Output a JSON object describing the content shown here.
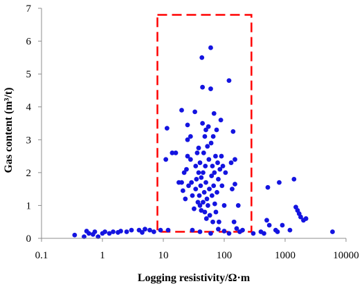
{
  "chart_data": {
    "type": "scatter",
    "title": "",
    "xlabel": "Logging resistivity/Ω·m",
    "ylabel": "Gas content (m³/t)",
    "x_scale": "log",
    "xlim": [
      0.1,
      10000
    ],
    "ylim": [
      0,
      7
    ],
    "x_ticks": [
      0.1,
      1,
      10,
      100,
      1000,
      10000
    ],
    "x_tick_labels": [
      "0.1",
      "1",
      "10",
      "100",
      "1000",
      "10000"
    ],
    "y_ticks": [
      0,
      1,
      2,
      3,
      4,
      5,
      6,
      7
    ],
    "y_tick_labels": [
      "0",
      "1",
      "2",
      "3",
      "4",
      "5",
      "6",
      "7"
    ],
    "grid": false,
    "legend": "none",
    "colors": {
      "points": "#1414e0",
      "highlight": "#ff0000",
      "axis": "#8c8c8c"
    },
    "highlight_box": {
      "x_range": [
        8,
        280
      ],
      "y_range": [
        0.2,
        6.8
      ],
      "style": "dashed"
    },
    "series": [
      {
        "points": [
          [
            0.35,
            0.1
          ],
          [
            0.5,
            0.05
          ],
          [
            0.55,
            0.22
          ],
          [
            0.6,
            0.15
          ],
          [
            0.7,
            0.12
          ],
          [
            0.75,
            0.2
          ],
          [
            0.85,
            0.05
          ],
          [
            1.0,
            0.15
          ],
          [
            1.1,
            0.2
          ],
          [
            1.3,
            0.15
          ],
          [
            1.5,
            0.2
          ],
          [
            1.8,
            0.18
          ],
          [
            2.0,
            0.22
          ],
          [
            2.5,
            0.2
          ],
          [
            3.0,
            0.25
          ],
          [
            4.0,
            0.25
          ],
          [
            4.5,
            0.18
          ],
          [
            5.0,
            0.28
          ],
          [
            6.0,
            0.25
          ],
          [
            7.0,
            0.2
          ],
          [
            9.0,
            0.25
          ],
          [
            12.0,
            0.25
          ],
          [
            11.0,
            2.4
          ],
          [
            11.5,
            3.35
          ],
          [
            14.0,
            2.6
          ],
          [
            16.0,
            2.6
          ],
          [
            18.0,
            1.7
          ],
          [
            20.0,
            3.9
          ],
          [
            20.0,
            1.7
          ],
          [
            21.0,
            1.45
          ],
          [
            22.0,
            2.0
          ],
          [
            23.0,
            1.2
          ],
          [
            24.0,
            2.1
          ],
          [
            25.0,
            3.0
          ],
          [
            25.0,
            3.45
          ],
          [
            25.0,
            2.5
          ],
          [
            26.0,
            1.6
          ],
          [
            28.0,
            3.1
          ],
          [
            28.0,
            2.4
          ],
          [
            29.0,
            1.7
          ],
          [
            30.0,
            1.3
          ],
          [
            32.0,
            0.9
          ],
          [
            33.0,
            3.85
          ],
          [
            34.0,
            2.2
          ],
          [
            34.0,
            1.5
          ],
          [
            35.0,
            1.8
          ],
          [
            36.0,
            2.6
          ],
          [
            37.0,
            1.1
          ],
          [
            38.0,
            2.0
          ],
          [
            38.0,
            2.75
          ],
          [
            39.0,
            1.3
          ],
          [
            40.0,
            1.0
          ],
          [
            40.0,
            2.3
          ],
          [
            41.0,
            1.6
          ],
          [
            42.0,
            0.85
          ],
          [
            42.0,
            1.85
          ],
          [
            43.0,
            5.5
          ],
          [
            44.0,
            4.6
          ],
          [
            44.0,
            3.5
          ],
          [
            45.0,
            2.0
          ],
          [
            45.0,
            1.1
          ],
          [
            46.0,
            2.6
          ],
          [
            47.0,
            1.4
          ],
          [
            48.0,
            0.8
          ],
          [
            48.0,
            3.1
          ],
          [
            49.0,
            2.2
          ],
          [
            50.0,
            1.7
          ],
          [
            50.0,
            3.3
          ],
          [
            51.0,
            0.6
          ],
          [
            52.0,
            1.2
          ],
          [
            53.0,
            2.8
          ],
          [
            54.0,
            1.0
          ],
          [
            55.0,
            3.4
          ],
          [
            56.0,
            2.4
          ],
          [
            57.0,
            1.5
          ],
          [
            58.0,
            0.7
          ],
          [
            60.0,
            5.8
          ],
          [
            60.0,
            4.55
          ],
          [
            61.0,
            2.9
          ],
          [
            62.0,
            1.9
          ],
          [
            63.0,
            1.3
          ],
          [
            64.0,
            2.2
          ],
          [
            65.0,
            0.5
          ],
          [
            66.0,
            3.1
          ],
          [
            67.0,
            1.6
          ],
          [
            68.0,
            3.8
          ],
          [
            69.0,
            2.0
          ],
          [
            70.0,
            1.05
          ],
          [
            72.0,
            2.5
          ],
          [
            73.0,
            0.8
          ],
          [
            75.0,
            3.3
          ],
          [
            76.0,
            1.4
          ],
          [
            78.0,
            2.3
          ],
          [
            80.0,
            1.8
          ],
          [
            82.0,
            0.5
          ],
          [
            85.0,
            2.1
          ],
          [
            88.0,
            3.6
          ],
          [
            90.0,
            2.5
          ],
          [
            92.0,
            1.6
          ],
          [
            95.0,
            2.2
          ],
          [
            100.0,
            1.0
          ],
          [
            105.0,
            2.0
          ],
          [
            120.0,
            4.8
          ],
          [
            130.0,
            2.3
          ],
          [
            135.0,
            1.5
          ],
          [
            140.0,
            3.25
          ],
          [
            145.0,
            0.5
          ],
          [
            150.0,
            2.4
          ],
          [
            150.0,
            1.65
          ],
          [
            160.0,
            0.3
          ],
          [
            170.0,
            1.0
          ],
          [
            180.0,
            0.2
          ],
          [
            200.0,
            0.25
          ],
          [
            30.0,
            0.25
          ],
          [
            40.0,
            0.2
          ],
          [
            60.0,
            0.15
          ],
          [
            80.0,
            0.28
          ],
          [
            100.0,
            0.22
          ],
          [
            120.0,
            0.15
          ],
          [
            300.0,
            0.15
          ],
          [
            400.0,
            0.2
          ],
          [
            450.0,
            0.15
          ],
          [
            500.0,
            0.55
          ],
          [
            520.0,
            1.55
          ],
          [
            550.0,
            0.4
          ],
          [
            700.0,
            0.25
          ],
          [
            750.0,
            0.2
          ],
          [
            800.0,
            1.7
          ],
          [
            900.0,
            0.4
          ],
          [
            1200.0,
            0.25
          ],
          [
            1400.0,
            1.8
          ],
          [
            1500.0,
            0.95
          ],
          [
            1600.0,
            0.85
          ],
          [
            1700.0,
            0.75
          ],
          [
            1800.0,
            0.65
          ],
          [
            2000.0,
            0.55
          ],
          [
            2200.0,
            0.6
          ],
          [
            6000.0,
            0.2
          ]
        ]
      }
    ]
  }
}
